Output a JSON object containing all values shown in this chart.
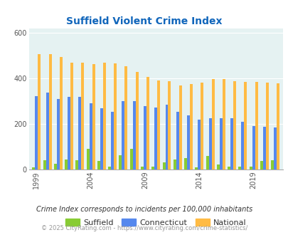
{
  "title": "Suffield Violent Crime Index",
  "years": [
    1999,
    2000,
    2001,
    2002,
    2003,
    2004,
    2005,
    2006,
    2007,
    2008,
    2009,
    2010,
    2011,
    2012,
    2013,
    2014,
    2015,
    2016,
    2017,
    2018,
    2019,
    2020,
    2021
  ],
  "suffield": [
    8,
    38,
    25,
    42,
    38,
    90,
    35,
    12,
    60,
    90,
    12,
    12,
    30,
    42,
    50,
    8,
    58,
    20,
    12,
    12,
    12,
    35,
    38
  ],
  "connecticut": [
    322,
    337,
    310,
    318,
    318,
    290,
    268,
    252,
    300,
    300,
    278,
    270,
    283,
    253,
    237,
    218,
    225,
    225,
    225,
    208,
    190,
    188,
    185
  ],
  "national": [
    507,
    507,
    492,
    470,
    470,
    462,
    470,
    465,
    454,
    428,
    405,
    390,
    388,
    368,
    375,
    382,
    395,
    397,
    387,
    385,
    383,
    380,
    378
  ],
  "suffield_color": "#88cc33",
  "connecticut_color": "#5588ee",
  "national_color": "#ffbb44",
  "bg_color": "#e5f2f2",
  "ylim": [
    0,
    620
  ],
  "yticks": [
    0,
    200,
    400,
    600
  ],
  "xtick_years": [
    1999,
    2004,
    2009,
    2014,
    2019
  ],
  "footnote": "Crime Index corresponds to incidents per 100,000 inhabitants",
  "copyright": "© 2025 CityRating.com - https://www.cityrating.com/crime-statistics/",
  "title_color": "#1166bb",
  "legend_text_color": "#333333",
  "footnote_color": "#333333",
  "copyright_color": "#999999"
}
